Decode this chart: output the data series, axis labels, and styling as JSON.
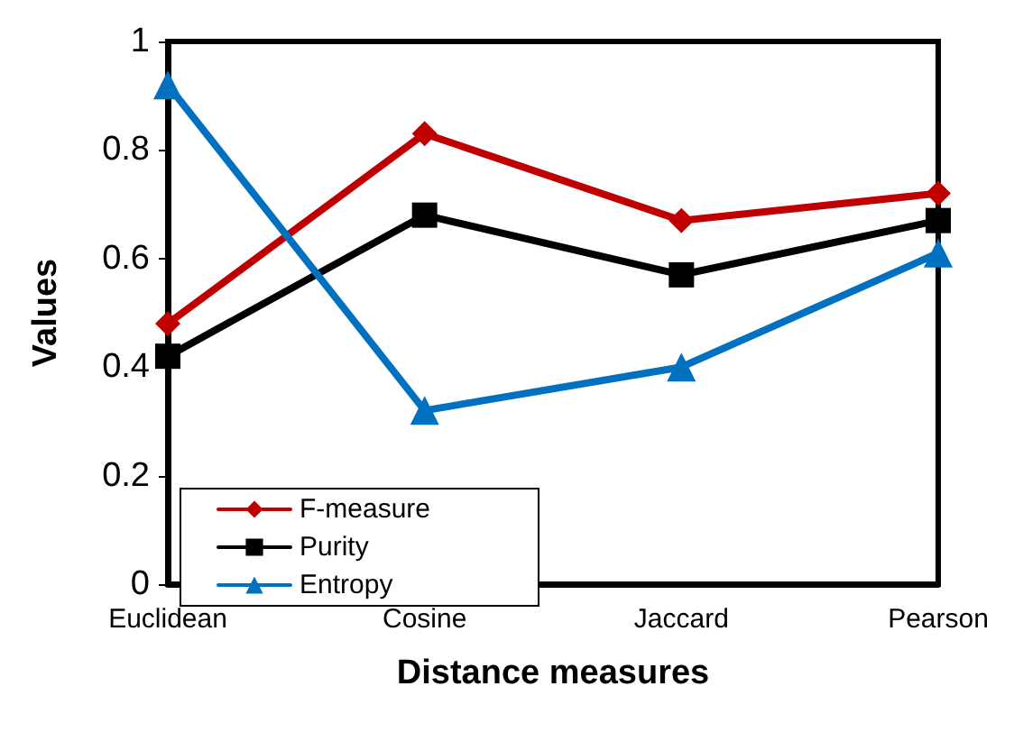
{
  "chart_data": {
    "type": "line",
    "xlabel": "Distance measures",
    "ylabel": "Values",
    "categories": [
      "Euclidean",
      "Cosine",
      "Jaccard",
      "Pearson"
    ],
    "series": [
      {
        "name": "F-measure",
        "color": "#c00000",
        "marker": "diamond",
        "values": [
          0.48,
          0.83,
          0.67,
          0.72
        ]
      },
      {
        "name": "Purity",
        "color": "#000000",
        "marker": "square",
        "values": [
          0.42,
          0.68,
          0.57,
          0.67
        ]
      },
      {
        "name": "Entropy",
        "color": "#0070c0",
        "marker": "triangle",
        "values": [
          0.92,
          0.32,
          0.4,
          0.61
        ]
      }
    ],
    "ylim": [
      0,
      1
    ],
    "yticks": [
      0,
      0.2,
      0.4,
      0.6,
      0.8,
      1
    ],
    "grid": false,
    "legend": "bottom left",
    "line_style": "solid"
  }
}
